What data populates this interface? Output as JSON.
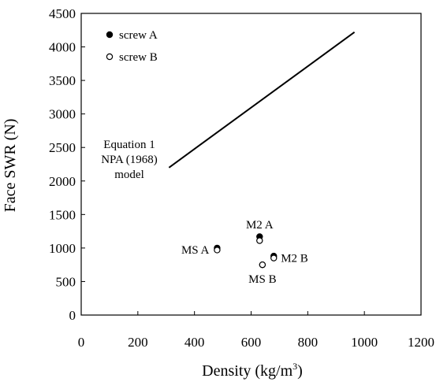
{
  "chart_data": {
    "type": "scatter",
    "xlabel_main": "Density (kg/m",
    "xlabel_sup": "3",
    "xlabel_close": ")",
    "ylabel": "Face SWR (N)",
    "xlim": [
      0,
      1200
    ],
    "ylim": [
      0,
      4500
    ],
    "xticks": [
      0,
      200,
      400,
      600,
      800,
      1000,
      1200
    ],
    "yticks": [
      0,
      500,
      1000,
      1500,
      2000,
      2500,
      3000,
      3500,
      4000,
      4500
    ],
    "grid": false,
    "legend_position": "top-left",
    "series": [
      {
        "name": "screw A",
        "marker": "filled-circle",
        "points": [
          {
            "x": 480,
            "y": 1000
          },
          {
            "x": 630,
            "y": 1170
          },
          {
            "x": 640,
            "y": 750
          },
          {
            "x": 680,
            "y": 880
          }
        ]
      },
      {
        "name": "screw B",
        "marker": "open-circle",
        "points": [
          {
            "x": 480,
            "y": 970
          },
          {
            "x": 630,
            "y": 1110
          },
          {
            "x": 640,
            "y": 750
          },
          {
            "x": 680,
            "y": 850
          }
        ]
      }
    ],
    "model_line": {
      "points": [
        {
          "x": 310,
          "y": 2200
        },
        {
          "x": 965,
          "y": 4220
        }
      ],
      "label_lines": [
        "Equation 1",
        "NPA (1968)",
        "model"
      ]
    },
    "point_labels": [
      {
        "text": "MS A",
        "x": 480,
        "y": 985,
        "anchor": "end"
      },
      {
        "text": "M2 A",
        "x": 630,
        "y": 1140,
        "anchor": "middle-above"
      },
      {
        "text": "M2 B",
        "x": 680,
        "y": 865,
        "anchor": "start"
      },
      {
        "text": "MS B",
        "x": 640,
        "y": 750,
        "anchor": "middle-below"
      }
    ]
  }
}
